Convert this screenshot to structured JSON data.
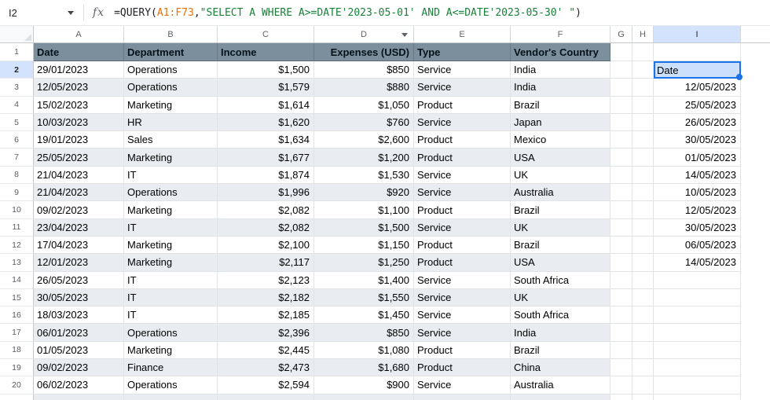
{
  "formula_bar": {
    "cell_reference": "I2",
    "fx_label": "fx",
    "formula_segments": [
      {
        "text": "=QUERY(",
        "color": "#202124"
      },
      {
        "text": "A1:F73",
        "color": "#e8710a"
      },
      {
        "text": ",",
        "color": "#202124"
      },
      {
        "text": "\"SELECT A WHERE A>=DATE'2023-05-01' AND A<=DATE'2023-05-30' \"",
        "color": "#188038"
      },
      {
        "text": ")",
        "color": "#202124"
      }
    ]
  },
  "sheet": {
    "column_letters": [
      "A",
      "B",
      "C",
      "D",
      "E",
      "F",
      "G",
      "H",
      "I"
    ],
    "filter_dropdown_column": "D",
    "selected_column": "I",
    "selected_cell": {
      "column": "I",
      "row": 2,
      "value": "Date"
    },
    "header_row": {
      "num": 1,
      "cells": [
        "Date",
        "Department",
        "Income",
        "Expenses (USD)",
        "Type",
        "Vendor's Country"
      ]
    },
    "rows": [
      {
        "num": 2,
        "cells": [
          "29/01/2023",
          "Operations",
          "$1,500",
          "$850",
          "Service",
          "India"
        ],
        "query_result": "Date"
      },
      {
        "num": 3,
        "cells": [
          "12/05/2023",
          "Operations",
          "$1,579",
          "$880",
          "Service",
          "India"
        ],
        "query_result": "12/05/2023"
      },
      {
        "num": 4,
        "cells": [
          "15/02/2023",
          "Marketing",
          "$1,614",
          "$1,050",
          "Product",
          "Brazil"
        ],
        "query_result": "25/05/2023"
      },
      {
        "num": 5,
        "cells": [
          "10/03/2023",
          "HR",
          "$1,620",
          "$760",
          "Service",
          "Japan"
        ],
        "query_result": "26/05/2023"
      },
      {
        "num": 6,
        "cells": [
          "19/01/2023",
          "Sales",
          "$1,634",
          "$2,600",
          "Product",
          "Mexico"
        ],
        "query_result": "30/05/2023"
      },
      {
        "num": 7,
        "cells": [
          "25/05/2023",
          "Marketing",
          "$1,677",
          "$1,200",
          "Product",
          "USA"
        ],
        "query_result": "01/05/2023"
      },
      {
        "num": 8,
        "cells": [
          "21/04/2023",
          "IT",
          "$1,874",
          "$1,530",
          "Service",
          "UK"
        ],
        "query_result": "14/05/2023"
      },
      {
        "num": 9,
        "cells": [
          "21/04/2023",
          "Operations",
          "$1,996",
          "$920",
          "Service",
          "Australia"
        ],
        "query_result": "10/05/2023"
      },
      {
        "num": 10,
        "cells": [
          "09/02/2023",
          "Marketing",
          "$2,082",
          "$1,100",
          "Product",
          "Brazil"
        ],
        "query_result": "12/05/2023"
      },
      {
        "num": 11,
        "cells": [
          "23/04/2023",
          "IT",
          "$2,082",
          "$1,500",
          "Service",
          "UK"
        ],
        "query_result": "30/05/2023"
      },
      {
        "num": 12,
        "cells": [
          "17/04/2023",
          "Marketing",
          "$2,100",
          "$1,150",
          "Product",
          "Brazil"
        ],
        "query_result": "06/05/2023"
      },
      {
        "num": 13,
        "cells": [
          "12/01/2023",
          "Marketing",
          "$2,117",
          "$1,250",
          "Product",
          "USA"
        ],
        "query_result": "14/05/2023"
      },
      {
        "num": 14,
        "cells": [
          "26/05/2023",
          "IT",
          "$2,123",
          "$1,400",
          "Service",
          "South Africa"
        ],
        "query_result": ""
      },
      {
        "num": 15,
        "cells": [
          "30/05/2023",
          "IT",
          "$2,182",
          "$1,550",
          "Service",
          "UK"
        ],
        "query_result": ""
      },
      {
        "num": 16,
        "cells": [
          "18/03/2023",
          "IT",
          "$2,185",
          "$1,450",
          "Service",
          "South Africa"
        ],
        "query_result": ""
      },
      {
        "num": 17,
        "cells": [
          "06/01/2023",
          "Operations",
          "$2,396",
          "$850",
          "Service",
          "India"
        ],
        "query_result": ""
      },
      {
        "num": 18,
        "cells": [
          "01/05/2023",
          "Marketing",
          "$2,445",
          "$1,080",
          "Product",
          "Brazil"
        ],
        "query_result": ""
      },
      {
        "num": 19,
        "cells": [
          "09/02/2023",
          "Finance",
          "$2,473",
          "$1,680",
          "Product",
          "China"
        ],
        "query_result": ""
      },
      {
        "num": 20,
        "cells": [
          "06/02/2023",
          "Operations",
          "$2,594",
          "$900",
          "Service",
          "Australia"
        ],
        "query_result": ""
      }
    ]
  },
  "colors": {
    "table_header_bg": "#7b8f9c",
    "row_band_bg": "#e9edf1",
    "selection_blue": "#1a73e8",
    "selected_cell_bg": "#cde0fb",
    "selected_header_bg": "#d3e3fd",
    "formula_range_orange": "#e8710a",
    "formula_string_green": "#188038"
  }
}
